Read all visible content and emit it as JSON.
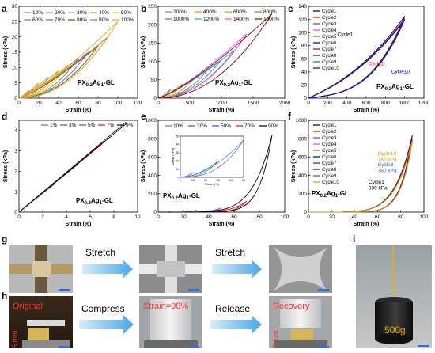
{
  "chart_data": [
    {
      "panel": "a",
      "type": "line",
      "xlabel": "Strain (%)",
      "ylabel": "Stress (kPa)",
      "xlim": [
        0,
        120
      ],
      "ylim": [
        0,
        30
      ],
      "xticks": [
        0,
        20,
        40,
        60,
        80,
        100,
        120
      ],
      "yticks": [
        0,
        5,
        10,
        15,
        20,
        25,
        30
      ],
      "sample_label": "PX0.2Ag1-GL",
      "legend": "top",
      "series": [
        {
          "name": "10%",
          "color": "#7f7f7f",
          "max_strain": 10,
          "max_stress": 2.5
        },
        {
          "name": "20%",
          "color": "#ff8c00",
          "max_strain": 20,
          "max_stress": 5
        },
        {
          "name": "30%",
          "color": "#a0a0a0",
          "max_strain": 30,
          "max_stress": 7
        },
        {
          "name": "40%",
          "color": "#c8a000",
          "max_strain": 40,
          "max_stress": 9
        },
        {
          "name": "50%",
          "color": "#ffc000",
          "max_strain": 50,
          "max_stress": 11
        },
        {
          "name": "60%",
          "color": "#6a8e3a",
          "max_strain": 60,
          "max_stress": 13
        },
        {
          "name": "70%",
          "color": "#4472c4",
          "max_strain": 70,
          "max_stress": 15
        },
        {
          "name": "80%",
          "color": "#7a4a00",
          "max_strain": 80,
          "max_stress": 17
        },
        {
          "name": "90%",
          "color": "#e06020",
          "max_strain": 90,
          "max_stress": 20
        },
        {
          "name": "100%",
          "color": "#f0a020",
          "max_strain": 100,
          "max_stress": 25
        }
      ]
    },
    {
      "panel": "b",
      "type": "line",
      "xlabel": "Strain (%)",
      "ylabel": "Stress (kPa)",
      "xlim": [
        0,
        2000
      ],
      "ylim": [
        0,
        250
      ],
      "xticks": [
        0,
        500,
        1000,
        1500,
        2000
      ],
      "yticks": [
        0,
        50,
        100,
        150,
        200,
        250
      ],
      "sample_label": "PX0.2Ag1-GL",
      "legend": "top-left",
      "series": [
        {
          "name": "200%",
          "color": "#7f7f7f",
          "max_strain": 200,
          "max_stress": 25
        },
        {
          "name": "400%",
          "color": "#ff8c00",
          "max_strain": 400,
          "max_stress": 40
        },
        {
          "name": "600%",
          "color": "#c8a000",
          "max_strain": 600,
          "max_stress": 60
        },
        {
          "name": "800%",
          "color": "#6a8e3a",
          "max_strain": 800,
          "max_stress": 80
        },
        {
          "name": "1000%",
          "color": "#4472c4",
          "max_strain": 1000,
          "max_stress": 105
        },
        {
          "name": "1200%",
          "color": "#20b0b0",
          "max_strain": 1200,
          "max_stress": 130
        },
        {
          "name": "1400%",
          "color": "#ff40ff",
          "max_strain": 1400,
          "max_stress": 175
        },
        {
          "name": "1800%",
          "color": "#8b0000",
          "max_strain": 1800,
          "max_stress": 230
        }
      ]
    },
    {
      "panel": "c",
      "type": "line",
      "xlabel": "Strain (%)",
      "ylabel": "Stress (kPa)",
      "xlim": [
        0,
        1200
      ],
      "ylim": [
        0,
        140
      ],
      "xticks": [
        0,
        200,
        400,
        600,
        800,
        1000,
        1200
      ],
      "yticks": [
        0,
        20,
        40,
        60,
        80,
        100,
        120,
        140
      ],
      "sample_label": "PX0.2Ag1-GL",
      "legend": "top-left",
      "annotations": [
        "Cycle1",
        "Cycle2",
        "Cycle10"
      ],
      "series": [
        {
          "name": "Cycle1",
          "color": "#000000",
          "max_strain": 1000,
          "max_stress": 125
        },
        {
          "name": "Cycle2",
          "color": "#ff0000",
          "max_strain": 1000,
          "max_stress": 122
        },
        {
          "name": "Cycle3",
          "color": "#3050ff",
          "max_strain": 1000,
          "max_stress": 121
        },
        {
          "name": "Cycle4",
          "color": "#ff40ff",
          "max_strain": 1000,
          "max_stress": 121
        },
        {
          "name": "Cycle5",
          "color": "#808000",
          "max_strain": 1000,
          "max_stress": 120
        },
        {
          "name": "Cycle6",
          "color": "#000080",
          "max_strain": 1000,
          "max_stress": 120
        },
        {
          "name": "Cycle7",
          "color": "#800080",
          "max_strain": 1000,
          "max_stress": 120
        },
        {
          "name": "Cycle8",
          "color": "#800000",
          "max_strain": 1000,
          "max_stress": 120
        },
        {
          "name": "Cycle9",
          "color": "#008080",
          "max_strain": 1000,
          "max_stress": 120
        },
        {
          "name": "Cycle10",
          "color": "#0000cc",
          "max_strain": 1000,
          "max_stress": 120
        }
      ]
    },
    {
      "panel": "d",
      "type": "line",
      "xlabel": "Strain (%)",
      "ylabel": "Stress (kPa)",
      "xlim": [
        0,
        10
      ],
      "ylim": [
        0,
        4.5
      ],
      "xticks": [
        0,
        2,
        4,
        6,
        8,
        10
      ],
      "yticks": [
        0,
        1,
        2,
        3,
        4
      ],
      "sample_label": "PX0.2Ag1-GL",
      "legend": "top",
      "series": [
        {
          "name": "1%",
          "color": "#c040c0",
          "max_strain": 1,
          "max_stress": 0.5
        },
        {
          "name": "3%",
          "color": "#008080",
          "max_strain": 3,
          "max_stress": 1.4
        },
        {
          "name": "5%",
          "color": "#3050ff",
          "max_strain": 5,
          "max_stress": 2.4
        },
        {
          "name": "7%",
          "color": "#ff0000",
          "max_strain": 7,
          "max_stress": 3.4
        },
        {
          "name": "9%",
          "color": "#000000",
          "max_strain": 9,
          "max_stress": 4.4
        }
      ]
    },
    {
      "panel": "e",
      "type": "line",
      "xlabel": "Strain (%)",
      "ylabel": "Stress (kPa)",
      "xlim": [
        0,
        100
      ],
      "ylim": [
        0,
        1000
      ],
      "xticks": [
        0,
        20,
        40,
        60,
        80,
        100
      ],
      "yticks": [
        0,
        200,
        400,
        600,
        800,
        1000
      ],
      "sample_label": "PX0.2Ag1-GL",
      "legend": "top",
      "inset": {
        "xlabel": "Strain (%)",
        "ylabel": "Stress (kPa)",
        "xlim": [
          0,
          50
        ],
        "ylim": [
          0,
          50
        ],
        "xticks": [
          0,
          10,
          20,
          30,
          40,
          50
        ],
        "yticks": [
          0,
          10,
          20,
          30,
          40,
          50
        ]
      },
      "series": [
        {
          "name": "10%",
          "color": "#c040c0",
          "max_strain": 10,
          "max_stress": 6
        },
        {
          "name": "30%",
          "color": "#008080",
          "max_strain": 30,
          "max_stress": 20
        },
        {
          "name": "50%",
          "color": "#3050ff",
          "max_strain": 50,
          "max_stress": 45
        },
        {
          "name": "70%",
          "color": "#ff0000",
          "max_strain": 70,
          "max_stress": 120
        },
        {
          "name": "90%",
          "color": "#000000",
          "max_strain": 90,
          "max_stress": 840
        }
      ]
    },
    {
      "panel": "f",
      "type": "line",
      "xlabel": "Strain (%)",
      "ylabel": "Stress (kPa)",
      "xlim": [
        0,
        100
      ],
      "ylim": [
        0,
        1000
      ],
      "xticks": [
        0,
        20,
        40,
        60,
        80,
        100
      ],
      "yticks": [
        0,
        200,
        400,
        600,
        800,
        1000
      ],
      "sample_label": "PX0.2Ag1-GL",
      "legend": "top-left",
      "annotations": [
        {
          "text": "Cycle10",
          "value": "780 kPa",
          "color": "#ff8c00"
        },
        {
          "text": "Cycle3",
          "value": "780 kPa",
          "color": "#3050ff"
        },
        {
          "text": "Cycle1",
          "value": "839 kPa",
          "color": "#000000"
        }
      ],
      "series": [
        {
          "name": "Cycle1",
          "color": "#000000",
          "max_strain": 90,
          "max_stress": 839
        },
        {
          "name": "Cycle2",
          "color": "#ff0000",
          "max_strain": 90,
          "max_stress": 800
        },
        {
          "name": "Cycle3",
          "color": "#3050ff",
          "max_strain": 90,
          "max_stress": 780
        },
        {
          "name": "Cycle4",
          "color": "#ff40ff",
          "max_strain": 90,
          "max_stress": 780
        },
        {
          "name": "Cycle5",
          "color": "#808000",
          "max_strain": 90,
          "max_stress": 780
        },
        {
          "name": "Cycle6",
          "color": "#000080",
          "max_strain": 90,
          "max_stress": 780
        },
        {
          "name": "Cycle7",
          "color": "#800080",
          "max_strain": 90,
          "max_stress": 780
        },
        {
          "name": "Cycle8",
          "color": "#800000",
          "max_strain": 90,
          "max_stress": 780
        },
        {
          "name": "Cycle9",
          "color": "#008080",
          "max_strain": 90,
          "max_stress": 780
        },
        {
          "name": "Cycle10",
          "color": "#ff8c00",
          "max_strain": 90,
          "max_stress": 780
        }
      ]
    }
  ],
  "panel_letters": [
    "a",
    "b",
    "c",
    "d",
    "e",
    "f",
    "g",
    "h",
    "i"
  ],
  "sample_label_parts": {
    "prefix": "PX",
    "sub1": "0.2",
    "mid": "Ag",
    "sub2": "1",
    "suffix": "-GL"
  },
  "photos": {
    "g": {
      "step1": "Stretch",
      "step2": "Stretch"
    },
    "h": {
      "state1": "Original",
      "state2": "Strain=90%",
      "state3": "Recovery",
      "step1": "Compress",
      "step2": "Release",
      "height1": "5 mm",
      "height2": "5 mm"
    },
    "i": {
      "weight": "500g"
    }
  }
}
